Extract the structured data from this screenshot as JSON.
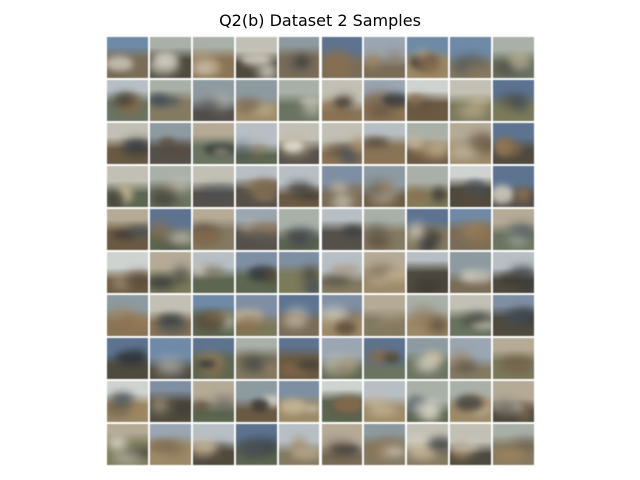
{
  "figure": {
    "title": "Q2(b) Dataset 2 Samples"
  },
  "grid": {
    "rows": 10,
    "cols": 10,
    "description_palette": [
      "#8a8a82",
      "#7a6a55",
      "#6d7c8c",
      "#9a8f75",
      "#5f6a5a",
      "#a4a89a",
      "#4e5560",
      "#8e7b60",
      "#7d8a9a",
      "#b0a488"
    ]
  }
}
